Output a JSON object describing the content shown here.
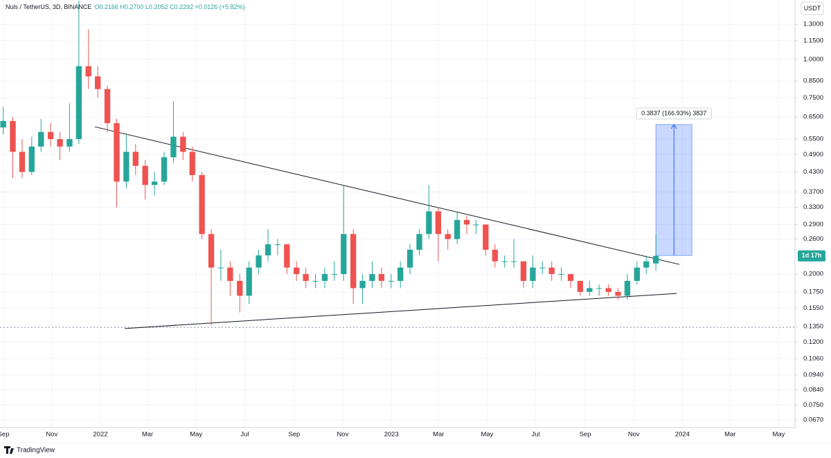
{
  "chart_data": {
    "type": "candlestick",
    "title": "Nuls / TetherUS, 3D, BINANCE",
    "ohlc": "O0.2166 H0.2700 L0.2052 C0.2292 +0.0126 (+5.82%)",
    "currency": "USDT",
    "countdown": "1d 17h",
    "footer": "TradingView",
    "log_scale": true,
    "grid": true,
    "up_color": "#26a69a",
    "down_color": "#ef5350",
    "x": [
      2021.666,
      2021.699,
      2021.731,
      2021.764,
      2021.796,
      2021.829,
      2021.861,
      2021.894,
      2021.926,
      2021.959,
      2021.991,
      2022.024,
      2022.056,
      2022.089,
      2022.121,
      2022.154,
      2022.186,
      2022.219,
      2022.251,
      2022.284,
      2022.316,
      2022.349,
      2022.381,
      2022.414,
      2022.446,
      2022.479,
      2022.511,
      2022.544,
      2022.576,
      2022.609,
      2022.641,
      2022.674,
      2022.706,
      2022.739,
      2022.771,
      2022.804,
      2022.836,
      2022.869,
      2022.901,
      2022.934,
      2022.966,
      2022.999,
      2023.031,
      2023.064,
      2023.096,
      2023.129,
      2023.161,
      2023.194,
      2023.226,
      2023.259,
      2023.291,
      2023.324,
      2023.356,
      2023.389,
      2023.421,
      2023.454,
      2023.486,
      2023.519,
      2023.551,
      2023.584,
      2023.616,
      2023.649,
      2023.681,
      2023.714,
      2023.746,
      2023.779,
      2023.811,
      2023.844,
      2023.876,
      2023.909
    ],
    "open": [
      0.6,
      0.63,
      0.5,
      0.43,
      0.52,
      0.58,
      0.55,
      0.52,
      0.55,
      0.95,
      0.88,
      0.8,
      0.62,
      0.4,
      0.5,
      0.45,
      0.39,
      0.4,
      0.48,
      0.56,
      0.5,
      0.42,
      0.27,
      0.21,
      0.21,
      0.19,
      0.17,
      0.21,
      0.23,
      0.25,
      0.25,
      0.21,
      0.2,
      0.19,
      0.19,
      0.2,
      0.2,
      0.27,
      0.18,
      0.19,
      0.2,
      0.19,
      0.19,
      0.21,
      0.24,
      0.27,
      0.32,
      0.27,
      0.26,
      0.3,
      0.29,
      0.29,
      0.24,
      0.22,
      0.22,
      0.22,
      0.19,
      0.21,
      0.21,
      0.2,
      0.2,
      0.19,
      0.175,
      0.18,
      0.18,
      0.175,
      0.17,
      0.19,
      0.21,
      0.2166
    ],
    "high": [
      0.7,
      0.65,
      0.55,
      0.56,
      0.64,
      0.62,
      0.58,
      0.72,
      1.55,
      1.25,
      0.95,
      0.82,
      0.64,
      0.57,
      0.53,
      0.47,
      0.43,
      0.5,
      0.73,
      0.58,
      0.52,
      0.43,
      0.28,
      0.24,
      0.22,
      0.2,
      0.22,
      0.24,
      0.28,
      0.26,
      0.25,
      0.22,
      0.21,
      0.2,
      0.21,
      0.22,
      0.39,
      0.28,
      0.2,
      0.22,
      0.21,
      0.2,
      0.22,
      0.25,
      0.28,
      0.39,
      0.33,
      0.28,
      0.32,
      0.31,
      0.3,
      0.29,
      0.25,
      0.23,
      0.26,
      0.22,
      0.23,
      0.22,
      0.22,
      0.21,
      0.2,
      0.19,
      0.19,
      0.185,
      0.185,
      0.18,
      0.2,
      0.22,
      0.23,
      0.27
    ],
    "low": [
      0.57,
      0.41,
      0.41,
      0.42,
      0.5,
      0.52,
      0.47,
      0.5,
      0.53,
      0.8,
      0.75,
      0.58,
      0.33,
      0.38,
      0.42,
      0.35,
      0.36,
      0.39,
      0.46,
      0.47,
      0.4,
      0.26,
      0.136,
      0.19,
      0.17,
      0.15,
      0.16,
      0.2,
      0.22,
      0.23,
      0.2,
      0.19,
      0.18,
      0.18,
      0.18,
      0.19,
      0.19,
      0.16,
      0.16,
      0.18,
      0.18,
      0.18,
      0.18,
      0.2,
      0.23,
      0.26,
      0.22,
      0.24,
      0.25,
      0.27,
      0.27,
      0.23,
      0.21,
      0.21,
      0.21,
      0.18,
      0.18,
      0.2,
      0.19,
      0.19,
      0.18,
      0.17,
      0.17,
      0.17,
      0.17,
      0.165,
      0.165,
      0.185,
      0.2,
      0.2052
    ],
    "close": [
      0.63,
      0.5,
      0.43,
      0.52,
      0.58,
      0.55,
      0.52,
      0.55,
      0.95,
      0.88,
      0.8,
      0.62,
      0.4,
      0.5,
      0.45,
      0.39,
      0.4,
      0.48,
      0.56,
      0.5,
      0.42,
      0.27,
      0.21,
      0.21,
      0.19,
      0.17,
      0.21,
      0.23,
      0.25,
      0.25,
      0.21,
      0.2,
      0.19,
      0.19,
      0.2,
      0.2,
      0.27,
      0.18,
      0.19,
      0.2,
      0.19,
      0.19,
      0.21,
      0.24,
      0.27,
      0.32,
      0.27,
      0.26,
      0.3,
      0.29,
      0.29,
      0.24,
      0.22,
      0.22,
      0.22,
      0.19,
      0.21,
      0.21,
      0.2,
      0.2,
      0.19,
      0.175,
      0.18,
      0.18,
      0.175,
      0.17,
      0.19,
      0.21,
      0.22,
      0.2292
    ],
    "trendline_color": "#131722",
    "trendlines": [
      {
        "x": [
          2021.981,
          2023.99
        ],
        "y": [
          0.603,
          0.215
        ]
      },
      {
        "x": [
          2022.084,
          2023.981
        ],
        "y": [
          0.133,
          0.173
        ]
      }
    ],
    "price_line": 0.134,
    "measure": {
      "x": [
        2023.909,
        2024.033
      ],
      "y": [
        0.2299,
        0.6136
      ],
      "label": "0.3837 (166.93%) 3837",
      "color": "#2962ff"
    },
    "xlim": [
      2021.655,
      2024.387
    ],
    "xticks": [
      {
        "value": 2021.667,
        "label": "Sep"
      },
      {
        "value": 2021.833,
        "label": "Nov"
      },
      2022,
      {
        "value": 2022.162,
        "label": "Mar"
      },
      {
        "value": 2022.329,
        "label": "May"
      },
      {
        "value": 2022.496,
        "label": "Jul"
      },
      {
        "value": 2022.666,
        "label": "Sep"
      },
      {
        "value": 2022.833,
        "label": "Nov"
      },
      2023,
      {
        "value": 2023.162,
        "label": "Mar"
      },
      {
        "value": 2023.329,
        "label": "May"
      },
      {
        "value": 2023.496,
        "label": "Jul"
      },
      {
        "value": 2023.666,
        "label": "Sep"
      },
      {
        "value": 2023.833,
        "label": "Nov"
      },
      2024,
      {
        "value": 2024.164,
        "label": "Mar"
      },
      {
        "value": 2024.331,
        "label": "May"
      }
    ],
    "ylim": [
      0.0633,
      1.56
    ],
    "yticks": [
      {
        "value": 1.3,
        "label": "1.3000"
      },
      {
        "value": 1.15,
        "label": "1.1500"
      },
      {
        "value": 1.0,
        "label": "1.0000"
      },
      {
        "value": 0.85,
        "label": "0.8500"
      },
      {
        "value": 0.75,
        "label": "0.7500"
      },
      {
        "value": 0.65,
        "label": "0.6500"
      },
      {
        "value": 0.55,
        "label": "0.5500"
      },
      {
        "value": 0.49,
        "label": "0.4900"
      },
      {
        "value": 0.43,
        "label": "0.4300"
      },
      {
        "value": 0.37,
        "label": "0.3700"
      },
      {
        "value": 0.33,
        "label": "0.3300"
      },
      {
        "value": 0.29,
        "label": "0.2900"
      },
      {
        "value": 0.26,
        "label": "0.2600"
      },
      {
        "value": 0.2,
        "label": "0.2000"
      },
      {
        "value": 0.175,
        "label": "0.1750"
      },
      {
        "value": 0.155,
        "label": "0.1550"
      },
      {
        "value": 0.135,
        "label": "0.1350"
      },
      {
        "value": 0.12,
        "label": "0.1200"
      },
      {
        "value": 0.106,
        "label": "0.1060"
      },
      {
        "value": 0.094,
        "label": "0.0940"
      },
      {
        "value": 0.084,
        "label": "0.0840"
      },
      {
        "value": 0.075,
        "label": "0.0750"
      },
      {
        "value": 0.067,
        "label": "0.0670"
      }
    ]
  }
}
